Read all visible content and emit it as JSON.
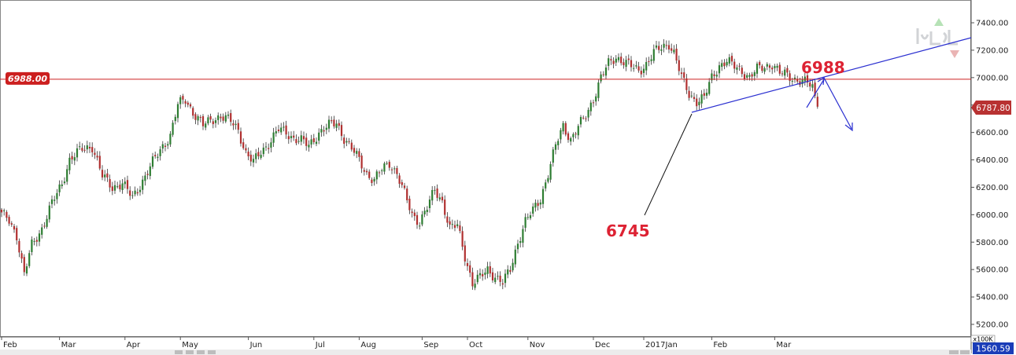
{
  "chart_data": {
    "type": "candlestick",
    "title": "",
    "xlabel": "",
    "ylabel": "",
    "ylim": [
      5100,
      7480
    ],
    "y_ticks": [
      "7400.00",
      "7200.00",
      "7000.00",
      "6800.00",
      "6600.00",
      "6400.00",
      "6200.00",
      "6000.00",
      "5800.00",
      "5600.00",
      "5400.00",
      "5200.00"
    ],
    "x_ticks": [
      "Feb",
      "Mar",
      "Apr",
      "May",
      "Jun",
      "Jul",
      "Aug",
      "Sep",
      "Oct",
      "Nov",
      "Dec",
      "2017Jan",
      "Feb",
      "Mar"
    ],
    "grid": false,
    "up_color": "#2e7d32",
    "down_color": "#b03030",
    "wick_color": "#333333",
    "anchors": [
      [
        0,
        6000
      ],
      [
        3,
        5960
      ],
      [
        6,
        5850
      ],
      [
        9,
        5560
      ],
      [
        12,
        5780
      ],
      [
        16,
        5900
      ],
      [
        20,
        6080
      ],
      [
        24,
        6230
      ],
      [
        27,
        6400
      ],
      [
        32,
        6480
      ],
      [
        36,
        6500
      ],
      [
        40,
        6280
      ],
      [
        44,
        6200
      ],
      [
        48,
        6230
      ],
      [
        52,
        6120
      ],
      [
        56,
        6250
      ],
      [
        60,
        6380
      ],
      [
        64,
        6500
      ],
      [
        67,
        6580
      ],
      [
        70,
        6800
      ],
      [
        73,
        6840
      ],
      [
        76,
        6750
      ],
      [
        80,
        6650
      ],
      [
        84,
        6700
      ],
      [
        87,
        6720
      ],
      [
        91,
        6680
      ],
      [
        94,
        6620
      ],
      [
        97,
        6450
      ],
      [
        100,
        6380
      ],
      [
        103,
        6460
      ],
      [
        106,
        6520
      ],
      [
        110,
        6620
      ],
      [
        113,
        6600
      ],
      [
        116,
        6560
      ],
      [
        119,
        6540
      ],
      [
        122,
        6500
      ],
      [
        126,
        6600
      ],
      [
        130,
        6650
      ],
      [
        133,
        6670
      ],
      [
        136,
        6560
      ],
      [
        139,
        6480
      ],
      [
        142,
        6400
      ],
      [
        145,
        6300
      ],
      [
        148,
        6250
      ],
      [
        151,
        6330
      ],
      [
        154,
        6380
      ],
      [
        157,
        6300
      ],
      [
        160,
        6150
      ],
      [
        163,
        6000
      ],
      [
        166,
        5950
      ],
      [
        169,
        6050
      ],
      [
        172,
        6180
      ],
      [
        175,
        6100
      ],
      [
        178,
        5900
      ],
      [
        181,
        5920
      ],
      [
        184,
        5700
      ],
      [
        187,
        5500
      ],
      [
        190,
        5540
      ],
      [
        193,
        5600
      ],
      [
        196,
        5550
      ],
      [
        199,
        5500
      ],
      [
        202,
        5600
      ],
      [
        205,
        5800
      ],
      [
        208,
        5950
      ],
      [
        211,
        6030
      ],
      [
        214,
        6120
      ],
      [
        217,
        6300
      ],
      [
        220,
        6500
      ],
      [
        223,
        6650
      ],
      [
        226,
        6550
      ],
      [
        229,
        6640
      ],
      [
        232,
        6720
      ],
      [
        235,
        6850
      ],
      [
        238,
        7000
      ],
      [
        241,
        7100
      ],
      [
        244,
        7150
      ],
      [
        247,
        7120
      ],
      [
        250,
        7080
      ],
      [
        253,
        7050
      ],
      [
        256,
        7100
      ],
      [
        259,
        7180
      ],
      [
        262,
        7220
      ],
      [
        265,
        7250
      ],
      [
        267,
        7180
      ],
      [
        270,
        7000
      ],
      [
        273,
        6880
      ],
      [
        276,
        6830
      ],
      [
        279,
        6850
      ],
      [
        282,
        7000
      ],
      [
        285,
        7090
      ],
      [
        288,
        7120
      ],
      [
        291,
        7080
      ],
      [
        294,
        7050
      ],
      [
        297,
        7000
      ],
      [
        300,
        7060
      ],
      [
        303,
        7080
      ],
      [
        306,
        7100
      ],
      [
        309,
        7030
      ],
      [
        312,
        7020
      ],
      [
        315,
        6990
      ],
      [
        318,
        6970
      ],
      [
        320,
        6960
      ],
      [
        322,
        6930
      ],
      [
        324,
        6787.8
      ]
    ],
    "horizontal_level": {
      "value": 6988,
      "label": "6988.00"
    },
    "last_price": "6787.80",
    "volume_readout": "1560.59",
    "volume_scale": "x100K",
    "annotations": [
      {
        "text": "6745",
        "value": 6745
      },
      {
        "text": "6988",
        "value": 6988
      }
    ],
    "line_colors": {
      "level": "#cc2222",
      "trend": "#2a2fd0",
      "annotation": "#dd2233",
      "axis": "#555555"
    }
  },
  "watermark": {
    "text": "ایزباه"
  }
}
